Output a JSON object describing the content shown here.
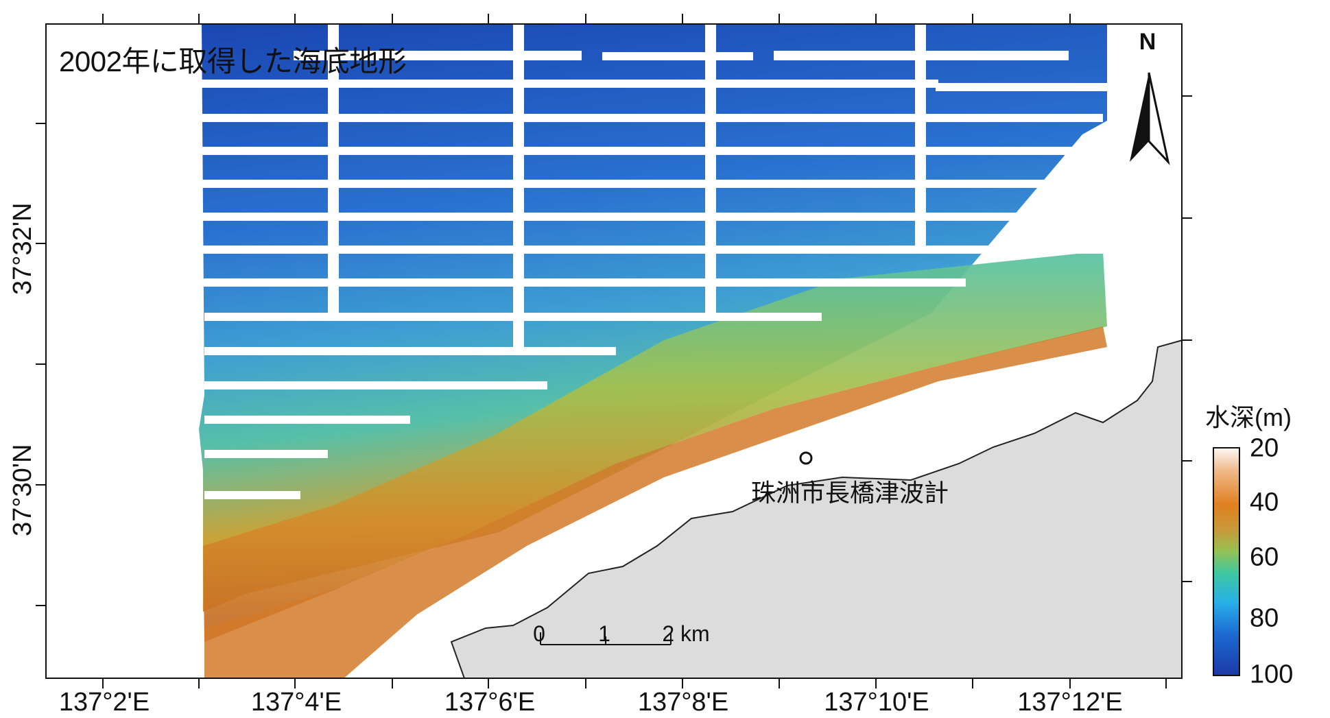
{
  "title": "2002年に取得した海底地形",
  "north_label": "N",
  "station_label": "珠洲市長橋津波計",
  "longitude_labels": [
    "137°2'E",
    "137°4'E",
    "137°6'E",
    "137°8'E",
    "137°10'E",
    "137°12'E"
  ],
  "latitude_labels": [
    "37°32'N",
    "37°30'N"
  ],
  "scale_bar": {
    "labels": [
      "0",
      "1",
      "2 km"
    ]
  },
  "colorbar": {
    "title": "水深(m)",
    "ticks": [
      "20",
      "40",
      "60",
      "80",
      "100"
    ],
    "colors": [
      "#fbf6f3",
      "#e0801f",
      "#98c050",
      "#28b0e8",
      "#1d3aa8"
    ]
  },
  "colors": {
    "deep": "#1d4fb8",
    "mid": "#3ea6c8",
    "shelf": "#62c88a",
    "shallow": "#d8842c",
    "land": "#dcdcdc",
    "frame": "#111111"
  }
}
